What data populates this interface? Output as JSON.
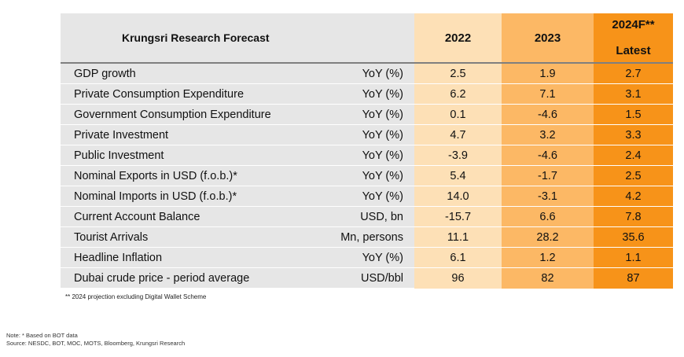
{
  "table": {
    "title": "Krungsri Research Forecast",
    "years": [
      "2022",
      "2023",
      "2024F**"
    ],
    "latest_label": "Latest",
    "rows": [
      {
        "label": "GDP growth",
        "unit": "YoY (%)",
        "v2022": "2.5",
        "v2023": "1.9",
        "v2024": "2.7"
      },
      {
        "label": "Private Consumption Expenditure",
        "unit": "YoY (%)",
        "v2022": "6.2",
        "v2023": "7.1",
        "v2024": "3.1"
      },
      {
        "label": "Government Consumption Expenditure",
        "unit": "YoY (%)",
        "v2022": "0.1",
        "v2023": "-4.6",
        "v2024": "1.5"
      },
      {
        "label": "Private Investment",
        "unit": "YoY (%)",
        "v2022": "4.7",
        "v2023": "3.2",
        "v2024": "3.3"
      },
      {
        "label": "Public Investment",
        "unit": "YoY (%)",
        "v2022": "-3.9",
        "v2023": "-4.6",
        "v2024": "2.4"
      },
      {
        "label": "Nominal Exports in USD (f.o.b.)*",
        "unit": "YoY (%)",
        "v2022": "5.4",
        "v2023": "-1.7",
        "v2024": "2.5"
      },
      {
        "label": "Nominal Imports in USD (f.o.b.)*",
        "unit": "YoY (%)",
        "v2022": "14.0",
        "v2023": "-3.1",
        "v2024": "4.2"
      },
      {
        "label": "Current Account Balance",
        "unit": "USD, bn",
        "v2022": "-15.7",
        "v2023": "6.6",
        "v2024": "7.8"
      },
      {
        "label": "Tourist Arrivals",
        "unit": "Mn, persons",
        "v2022": "11.1",
        "v2023": "28.2",
        "v2024": "35.6"
      },
      {
        "label": "Headline Inflation",
        "unit": "YoY (%)",
        "v2022": "6.1",
        "v2023": "1.2",
        "v2024": "1.1"
      },
      {
        "label": "Dubai crude price - period average",
        "unit": "USD/bbl",
        "v2022": "96",
        "v2023": "82",
        "v2024": "87"
      }
    ]
  },
  "footnote": "** 2024 projection excluding Digital Wallet Scheme",
  "note": "Note: * Based on BOT data",
  "source": "Source: NESDC, BOT, MOC, MOTS, Bloomberg, Krungsri Research",
  "colors": {
    "label_bg": "#e6e6e6",
    "y2022_bg": "#fde0b6",
    "y2023_bg": "#fcb865",
    "y2024_bg": "#f79319"
  }
}
